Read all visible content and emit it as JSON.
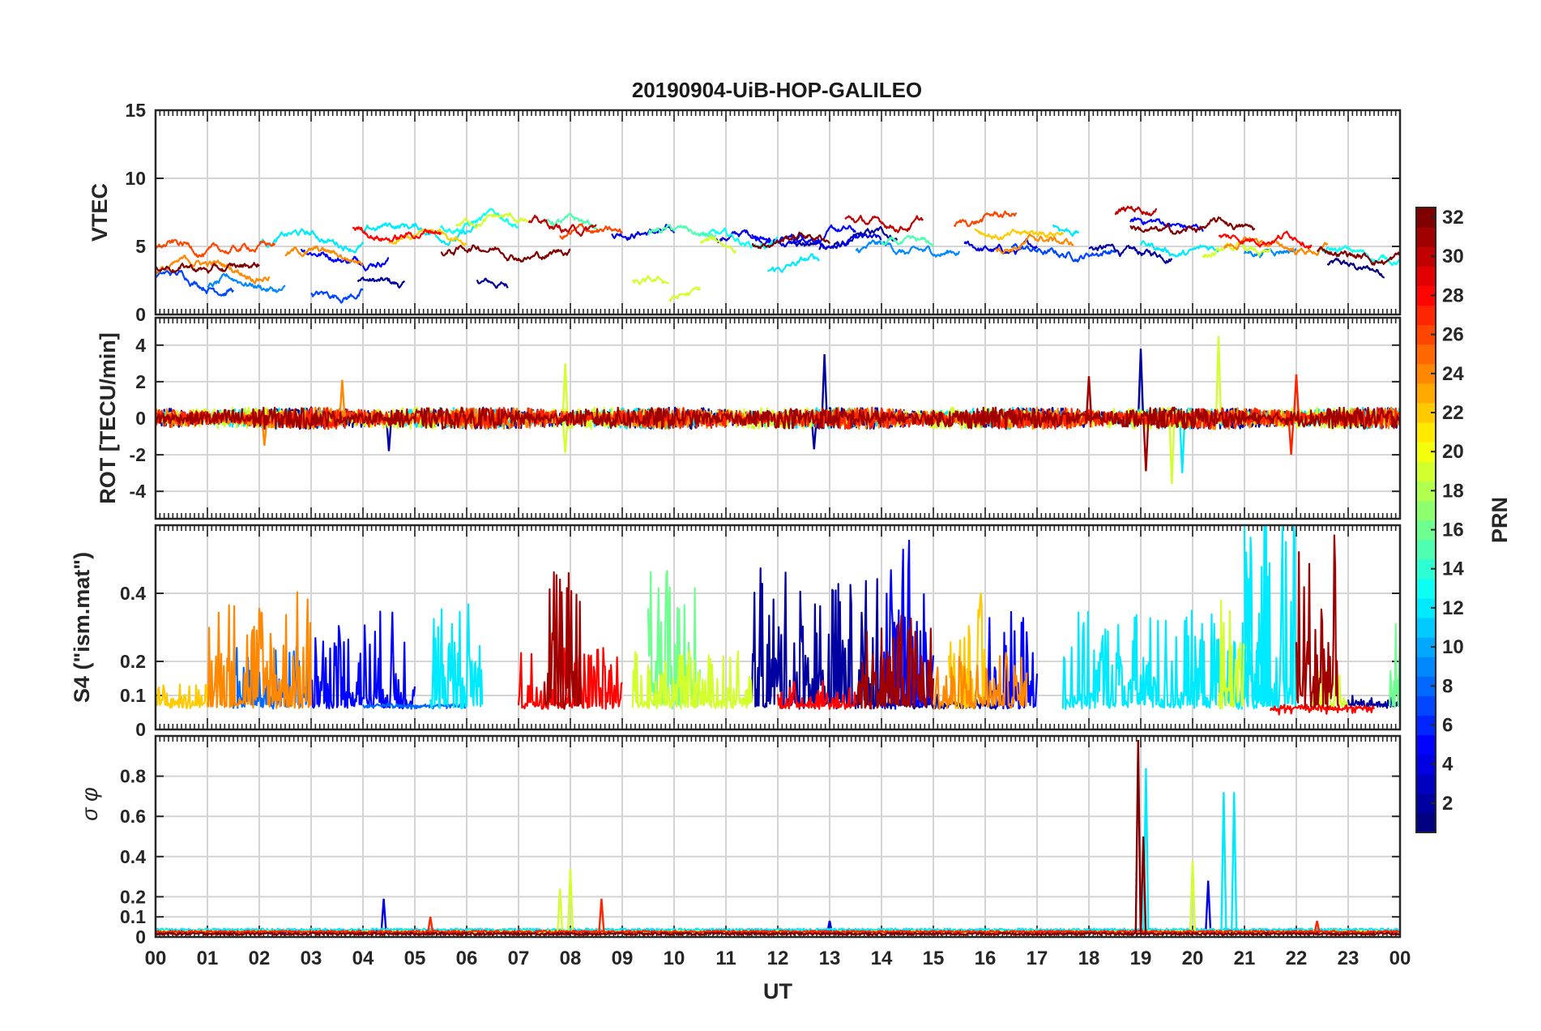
{
  "chart_data": {
    "type": "line",
    "title": "20190904-UiB-HOP-GALILEO",
    "xlabel": "UT",
    "x_range_hours": [
      0,
      24
    ],
    "x_tick_labels": [
      "00",
      "01",
      "02",
      "03",
      "04",
      "05",
      "06",
      "07",
      "08",
      "09",
      "10",
      "11",
      "12",
      "13",
      "14",
      "15",
      "16",
      "17",
      "18",
      "19",
      "20",
      "21",
      "22",
      "23",
      "00"
    ],
    "x_tick_hours": [
      0,
      1,
      2,
      3,
      4,
      5,
      6,
      7,
      8,
      9,
      10,
      11,
      12,
      13,
      14,
      15,
      16,
      17,
      18,
      19,
      20,
      21,
      22,
      23,
      24
    ],
    "colorbar": {
      "label": "PRN",
      "range": [
        1,
        32
      ],
      "tick_values": [
        2,
        4,
        6,
        8,
        10,
        12,
        14,
        16,
        18,
        20,
        22,
        24,
        26,
        28,
        30,
        32
      ],
      "tick_labels": [
        "2",
        "4",
        "6",
        "8",
        "10",
        "12",
        "14",
        "16",
        "18",
        "20",
        "22",
        "24",
        "26",
        "28",
        "30",
        "32"
      ],
      "colormap": "jet"
    },
    "panels": [
      {
        "id": "vtec",
        "ylabel": "VTEC",
        "ylim": [
          0,
          15
        ],
        "y_ticks": [
          0,
          5,
          10,
          15
        ],
        "y_tick_labels": [
          "0",
          "5",
          "10",
          "15"
        ],
        "baseline": 5,
        "series": [
          {
            "prn": 1,
            "segments": [
              [
                22.6,
                23.7,
                3.4
              ]
            ]
          },
          {
            "prn": 2,
            "segments": [
              [
                3.9,
                4.8,
                2.2
              ],
              [
                6.2,
                6.8,
                2.4
              ],
              [
                12.3,
                14.3,
                5.4
              ],
              [
                18.0,
                19.6,
                4.5
              ]
            ]
          },
          {
            "prn": 4,
            "segments": [
              [
                8.8,
                10.0,
                6.0
              ],
              [
                10.8,
                12.5,
                5.6
              ],
              [
                12.8,
                14.0,
                5.0
              ],
              [
                15.6,
                17.0,
                4.8
              ]
            ]
          },
          {
            "prn": 5,
            "segments": [
              [
                2.8,
                4.5,
                4.5
              ],
              [
                11.5,
                13.5,
                5.8
              ],
              [
                18.8,
                20.2,
                6.5
              ]
            ]
          },
          {
            "prn": 7,
            "segments": [
              [
                3.0,
                4.0,
                1.6
              ],
              [
                16.5,
                18.5,
                4.6
              ],
              [
                0.0,
                1.5,
                2.5
              ]
            ]
          },
          {
            "prn": 9,
            "segments": [
              [
                1.0,
                2.5,
                2.0
              ],
              [
                13.5,
                15.5,
                4.6
              ],
              [
                21.0,
                22.0,
                4.8
              ]
            ]
          },
          {
            "prn": 12,
            "segments": [
              [
                2.0,
                4.0,
                5.5
              ],
              [
                4.0,
                6.2,
                6.2
              ],
              [
                11.8,
                12.8,
                3.6
              ],
              [
                17.3,
                17.8,
                6.5
              ],
              [
                19.0,
                20.5,
                4.8
              ]
            ]
          },
          {
            "prn": 13,
            "segments": [
              [
                5.5,
                7.0,
                6.8
              ],
              [
                10.5,
                12.0,
                5.4
              ],
              [
                22.5,
                24.0,
                4.4
              ]
            ]
          },
          {
            "prn": 15,
            "segments": [
              [
                7.5,
                8.5,
                6.4
              ],
              [
                9.5,
                10.8,
                5.8
              ],
              [
                14.0,
                15.0,
                5.0
              ]
            ]
          },
          {
            "prn": 19,
            "segments": [
              [
                5.8,
                7.2,
                6.8
              ],
              [
                9.2,
                9.9,
                2.4
              ],
              [
                9.9,
                10.5,
                1.2
              ],
              [
                10.5,
                11.2,
                5.0
              ],
              [
                20.2,
                21.5,
                4.3
              ]
            ]
          },
          {
            "prn": 22,
            "segments": [
              [
                4.5,
                6.0,
                5.6
              ],
              [
                15.8,
                17.5,
                6.0
              ]
            ]
          },
          {
            "prn": 24,
            "segments": [
              [
                0.0,
                2.2,
                3.4
              ],
              [
                2.5,
                4.0,
                4.3
              ],
              [
                16.2,
                17.7,
                5.2
              ],
              [
                20.6,
                22.6,
                5.0
              ]
            ]
          },
          {
            "prn": 26,
            "segments": [
              [
                0.0,
                2.3,
                4.8
              ],
              [
                15.4,
                16.6,
                7.0
              ],
              [
                7.8,
                9.0,
                5.8
              ]
            ]
          },
          {
            "prn": 28,
            "segments": [
              [
                3.8,
                5.5,
                6.1
              ],
              [
                20.5,
                22.3,
                5.8
              ]
            ]
          },
          {
            "prn": 30,
            "segments": [
              [
                7.2,
                8.5,
                6.4
              ],
              [
                13.3,
                14.8,
                6.8
              ],
              [
                18.5,
                19.3,
                7.5
              ]
            ]
          },
          {
            "prn": 32,
            "segments": [
              [
                0.0,
                2.0,
                3.5
              ],
              [
                5.5,
                8.0,
                4.8
              ],
              [
                11.5,
                13.0,
                5.6
              ],
              [
                18.8,
                21.2,
                6.2
              ],
              [
                22.4,
                24.0,
                4.4
              ]
            ]
          }
        ]
      },
      {
        "id": "rot",
        "ylabel": "ROT [TECU/min]",
        "ylim": [
          -5.5,
          5.5
        ],
        "y_ticks": [
          -4,
          -2,
          0,
          2,
          4
        ],
        "y_tick_labels": [
          "-4",
          "-2",
          "0",
          "2",
          "4"
        ],
        "baseline": 0,
        "series": [
          {
            "prn": 2,
            "segments": [
              [
                0.0,
                24.0,
                0.0
              ]
            ],
            "spikes": [
              [
                12.9,
                3.5
              ],
              [
                19.0,
                3.8
              ],
              [
                12.7,
                -1.7
              ],
              [
                4.5,
                -1.8
              ]
            ]
          },
          {
            "prn": 12,
            "segments": [
              [
                0.0,
                24.0,
                0.0
              ]
            ],
            "spikes": [
              [
                19.8,
                -3.0
              ]
            ]
          },
          {
            "prn": 19,
            "segments": [
              [
                0.0,
                24.0,
                0.0
              ]
            ],
            "spikes": [
              [
                20.5,
                4.5
              ],
              [
                19.6,
                -3.6
              ],
              [
                7.9,
                3.0
              ],
              [
                7.9,
                -1.9
              ]
            ]
          },
          {
            "prn": 24,
            "segments": [
              [
                0.0,
                24.0,
                0.0
              ]
            ],
            "spikes": [
              [
                3.6,
                2.1
              ],
              [
                2.1,
                -1.5
              ]
            ]
          },
          {
            "prn": 27,
            "segments": [
              [
                0.0,
                24.0,
                0.0
              ]
            ],
            "spikes": [
              [
                22.0,
                2.4
              ],
              [
                21.9,
                -2.0
              ]
            ]
          },
          {
            "prn": 31,
            "segments": [
              [
                0.0,
                24.0,
                0.0
              ]
            ],
            "spikes": [
              [
                18.0,
                2.3
              ],
              [
                19.1,
                -2.9
              ]
            ]
          }
        ]
      },
      {
        "id": "s4",
        "ylabel": "S4 (\"ism.mat\")",
        "ylim": [
          0,
          0.6
        ],
        "y_ticks": [
          0,
          0.1,
          0.2,
          0.4
        ],
        "y_tick_labels": [
          "0",
          "0.1",
          "0.2",
          "0.4"
        ],
        "baseline": 0.08,
        "series": [
          {
            "prn": 2,
            "segments": [
              [
                11.5,
                14.0,
                0.25
              ],
              [
                14.0,
                16.5,
                0.08
              ],
              [
                23.0,
                24.0,
                0.08
              ]
            ]
          },
          {
            "prn": 5,
            "segments": [
              [
                3.0,
                5.0,
                0.2
              ],
              [
                14.0,
                15.0,
                0.3
              ],
              [
                16.0,
                17.0,
                0.2
              ]
            ]
          },
          {
            "prn": 8,
            "segments": [
              [
                1.5,
                3.0,
                0.15
              ],
              [
                4.0,
                6.0,
                0.07
              ]
            ]
          },
          {
            "prn": 12,
            "segments": [
              [
                5.3,
                6.3,
                0.22
              ],
              [
                17.5,
                21.5,
                0.2
              ],
              [
                21.0,
                22.0,
                0.35
              ]
            ]
          },
          {
            "prn": 16,
            "segments": [
              [
                9.5,
                10.5,
                0.25
              ],
              [
                23.8,
                24.0,
                0.3
              ]
            ]
          },
          {
            "prn": 19,
            "segments": [
              [
                9.2,
                11.5,
                0.14
              ],
              [
                20.5,
                21.0,
                0.25
              ],
              [
                22.3,
                23.0,
                0.12
              ]
            ]
          },
          {
            "prn": 22,
            "segments": [
              [
                0.0,
                1.0,
                0.1
              ],
              [
                15.3,
                16.0,
                0.22
              ]
            ]
          },
          {
            "prn": 24,
            "segments": [
              [
                1.0,
                3.0,
                0.23
              ],
              [
                15.0,
                16.8,
                0.14
              ]
            ]
          },
          {
            "prn": 28,
            "segments": [
              [
                7.0,
                9.0,
                0.16
              ],
              [
                12.0,
                13.5,
                0.1
              ],
              [
                21.5,
                23.5,
                0.06
              ]
            ]
          },
          {
            "prn": 31,
            "segments": [
              [
                13.5,
                15.0,
                0.2
              ],
              [
                22.0,
                22.8,
                0.3
              ],
              [
                7.5,
                8.2,
                0.25
              ]
            ]
          }
        ]
      },
      {
        "id": "sigma_phi",
        "ylabel": "σ φ",
        "ylim": [
          0,
          1.0
        ],
        "y_ticks": [
          0,
          0.1,
          0.2,
          0.4,
          0.6,
          0.8
        ],
        "y_tick_labels": [
          "0",
          "0.1",
          "0.2",
          "0.4",
          "0.6",
          "0.8"
        ],
        "baseline": 0.02,
        "series": [
          {
            "prn": 4,
            "segments": [
              [
                0.0,
                24.0,
                0.02
              ]
            ],
            "spikes": [
              [
                4.4,
                0.19
              ],
              [
                13.0,
                0.08
              ],
              [
                20.3,
                0.28
              ]
            ]
          },
          {
            "prn": 12,
            "segments": [
              [
                0.0,
                24.0,
                0.03
              ]
            ],
            "spikes": [
              [
                19.1,
                0.84
              ],
              [
                20.6,
                0.72
              ],
              [
                20.8,
                0.72
              ]
            ]
          },
          {
            "prn": 19,
            "segments": [
              [
                0.0,
                24.0,
                0.02
              ]
            ],
            "spikes": [
              [
                8.0,
                0.34
              ],
              [
                7.8,
                0.24
              ],
              [
                20.0,
                0.38
              ]
            ]
          },
          {
            "prn": 27,
            "segments": [
              [
                0.0,
                24.0,
                0.02
              ]
            ],
            "spikes": [
              [
                8.6,
                0.19
              ],
              [
                5.3,
                0.1
              ],
              [
                22.4,
                0.08
              ]
            ]
          },
          {
            "prn": 32,
            "segments": [
              [
                0.0,
                24.0,
                0.01
              ]
            ],
            "spikes": [
              [
                18.95,
                0.98
              ],
              [
                19.05,
                0.5
              ]
            ]
          }
        ]
      }
    ]
  }
}
